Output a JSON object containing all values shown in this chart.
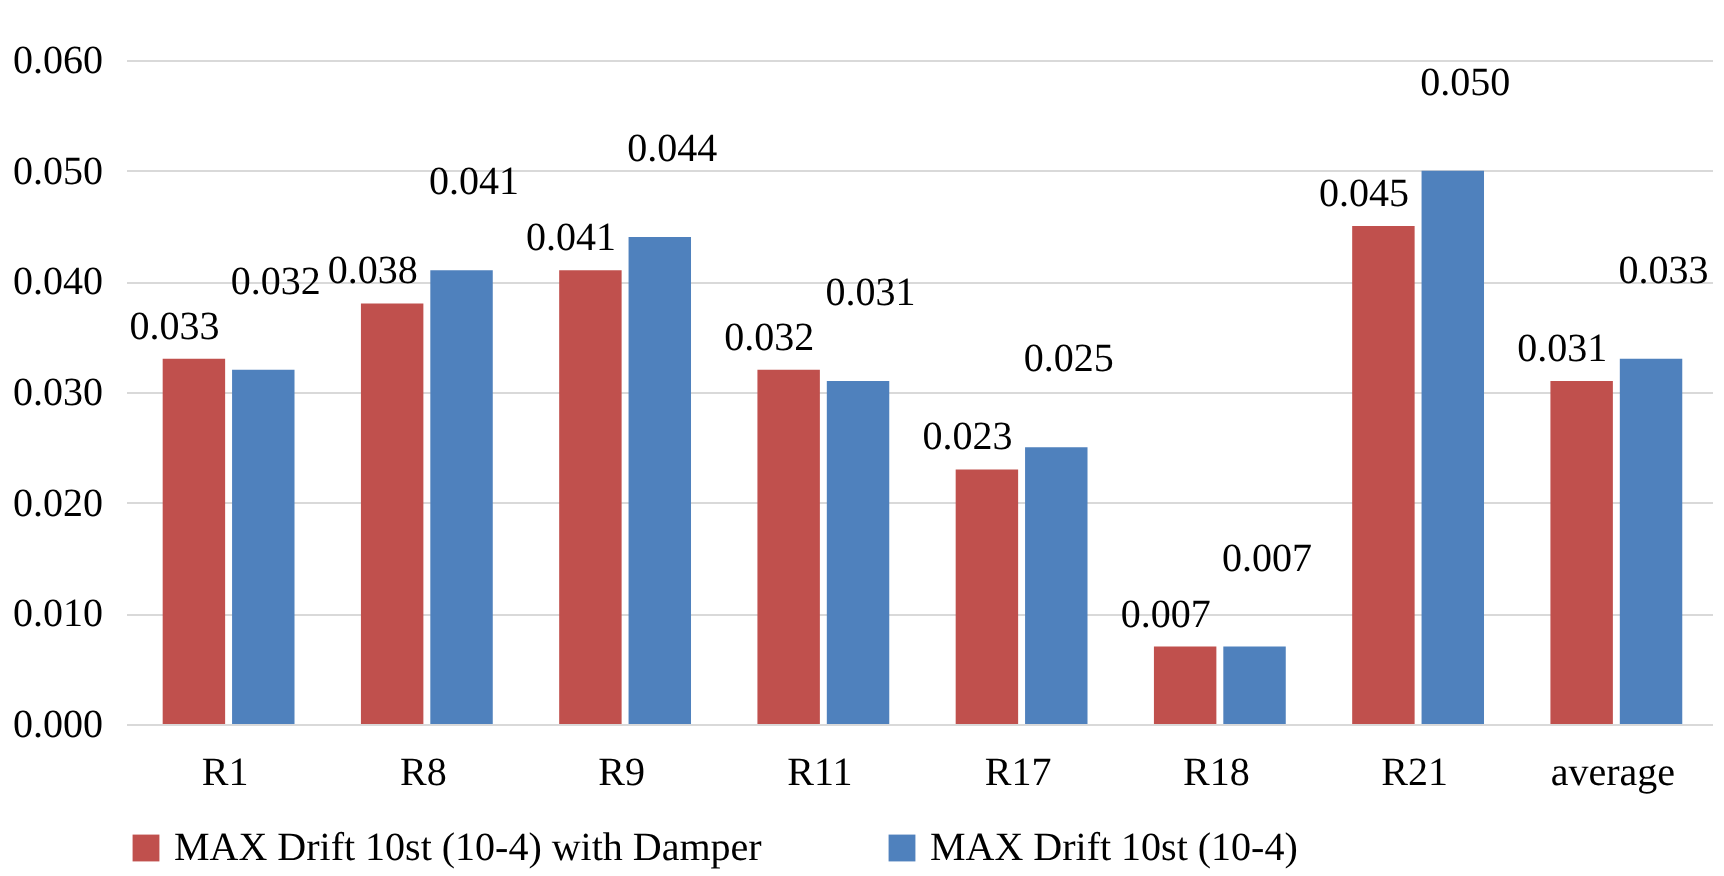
{
  "chart_data": {
    "type": "bar",
    "categories": [
      "R1",
      "R8",
      "R9",
      "R11",
      "R17",
      "R18",
      "R21",
      "average"
    ],
    "series": [
      {
        "name": "MAX Drift 10st (10-4) with Damper",
        "color": "#c0504d",
        "values": [
          0.033,
          0.038,
          0.041,
          0.032,
          0.023,
          0.007,
          0.045,
          0.031
        ],
        "value_labels": [
          "0.033",
          "0.038",
          "0.041",
          "0.032",
          "0.023",
          "0.007",
          "0.045",
          "0.031"
        ]
      },
      {
        "name": "MAX Drift 10st (10-4)",
        "color": "#4f81bd",
        "values": [
          0.032,
          0.041,
          0.044,
          0.031,
          0.025,
          0.007,
          0.05,
          0.033
        ],
        "value_labels": [
          "0.032",
          "0.041",
          "0.044",
          "0.031",
          "0.025",
          "0.007",
          "0.050",
          "0.033"
        ]
      }
    ],
    "ylim": [
      0,
      0.06
    ],
    "yticks": [
      {
        "value": 0,
        "label": "0.000"
      },
      {
        "value": 0.01,
        "label": "0.010"
      },
      {
        "value": 0.02,
        "label": "0.020"
      },
      {
        "value": 0.03,
        "label": "0.030"
      },
      {
        "value": 0.04,
        "label": "0.040"
      },
      {
        "value": 0.05,
        "label": "0.050"
      },
      {
        "value": 0.06,
        "label": "0.060"
      }
    ],
    "grid": "y",
    "legend": "bottom"
  }
}
